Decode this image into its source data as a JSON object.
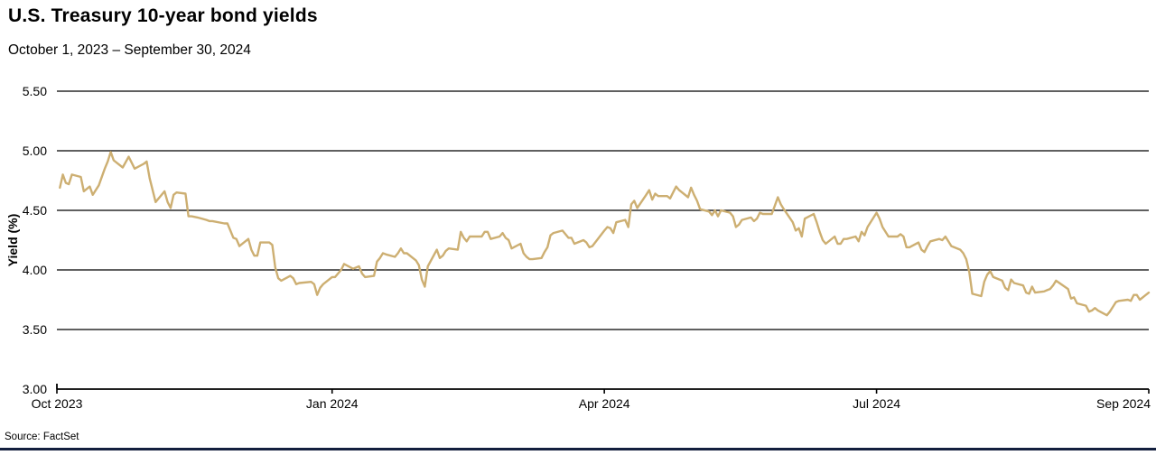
{
  "header": {
    "title": "U.S. Treasury 10-year bond yields",
    "subtitle": "October 1, 2023 – September 30, 2024"
  },
  "footer": {
    "source": "Source: FactSet"
  },
  "colors": {
    "line": "#CDAF72",
    "grid": "#000000",
    "text": "#000000",
    "accent_bar": "#131F3E"
  },
  "chart_data": {
    "type": "line",
    "title": "U.S. Treasury 10-year bond yields",
    "subtitle": "October 1, 2023 – September 30, 2024",
    "xlabel": "",
    "ylabel": "Yield (%)",
    "ylim": [
      3.0,
      5.5
    ],
    "y_ticks": [
      5.5,
      5.0,
      4.5,
      4.0,
      3.5,
      3.0
    ],
    "y_tick_labels": [
      "5.50",
      "5.00",
      "4.50",
      "4.00",
      "3.50",
      "3.00"
    ],
    "grid": "horizontal-only",
    "legend": "none",
    "x_unit": "days since Oct 1, 2023",
    "x_range_days": 365,
    "x_ticks": [
      {
        "label": "Oct 2023",
        "day": 0
      },
      {
        "label": "Jan 2024",
        "day": 92
      },
      {
        "label": "Apr 2024",
        "day": 183
      },
      {
        "label": "Jul 2024",
        "day": 274
      },
      {
        "label": "Sep 2024",
        "day": 365
      }
    ],
    "series": [
      {
        "name": "U.S. Treasury 10-year yield",
        "unit": "%",
        "points": [
          [
            1,
            4.69
          ],
          [
            2,
            4.8
          ],
          [
            3,
            4.73
          ],
          [
            4,
            4.72
          ],
          [
            5,
            4.8
          ],
          [
            8,
            4.78
          ],
          [
            9,
            4.66
          ],
          [
            11,
            4.7
          ],
          [
            12,
            4.63
          ],
          [
            14,
            4.71
          ],
          [
            16,
            4.85
          ],
          [
            17,
            4.91
          ],
          [
            18,
            4.99
          ],
          [
            19,
            4.92
          ],
          [
            22,
            4.86
          ],
          [
            24,
            4.95
          ],
          [
            25,
            4.9
          ],
          [
            26,
            4.85
          ],
          [
            29,
            4.89
          ],
          [
            30,
            4.91
          ],
          [
            31,
            4.77
          ],
          [
            32,
            4.67
          ],
          [
            33,
            4.57
          ],
          [
            36,
            4.66
          ],
          [
            37,
            4.57
          ],
          [
            38,
            4.52
          ],
          [
            39,
            4.63
          ],
          [
            40,
            4.65
          ],
          [
            43,
            4.64
          ],
          [
            44,
            4.45
          ],
          [
            45,
            4.45
          ],
          [
            47,
            4.44
          ],
          [
            50,
            4.42
          ],
          [
            51,
            4.41
          ],
          [
            52,
            4.41
          ],
          [
            56,
            4.39
          ],
          [
            57,
            4.39
          ],
          [
            58,
            4.33
          ],
          [
            59,
            4.27
          ],
          [
            60,
            4.26
          ],
          [
            61,
            4.2
          ],
          [
            64,
            4.26
          ],
          [
            65,
            4.17
          ],
          [
            66,
            4.12
          ],
          [
            67,
            4.12
          ],
          [
            68,
            4.23
          ],
          [
            71,
            4.23
          ],
          [
            72,
            4.21
          ],
          [
            73,
            4.02
          ],
          [
            74,
            3.93
          ],
          [
            75,
            3.91
          ],
          [
            78,
            3.95
          ],
          [
            79,
            3.93
          ],
          [
            80,
            3.88
          ],
          [
            81,
            3.89
          ],
          [
            85,
            3.9
          ],
          [
            86,
            3.88
          ],
          [
            87,
            3.79
          ],
          [
            88,
            3.85
          ],
          [
            89,
            3.88
          ],
          [
            92,
            3.94
          ],
          [
            93,
            3.94
          ],
          [
            95,
            4.0
          ],
          [
            96,
            4.05
          ],
          [
            99,
            4.01
          ],
          [
            100,
            4.02
          ],
          [
            101,
            4.03
          ],
          [
            102,
            3.97
          ],
          [
            103,
            3.94
          ],
          [
            106,
            3.95
          ],
          [
            107,
            4.07
          ],
          [
            108,
            4.1
          ],
          [
            109,
            4.14
          ],
          [
            110,
            4.13
          ],
          [
            113,
            4.11
          ],
          [
            114,
            4.14
          ],
          [
            115,
            4.18
          ],
          [
            116,
            4.14
          ],
          [
            117,
            4.14
          ],
          [
            120,
            4.08
          ],
          [
            121,
            4.04
          ],
          [
            122,
            3.92
          ],
          [
            123,
            3.86
          ],
          [
            124,
            4.03
          ],
          [
            127,
            4.17
          ],
          [
            128,
            4.1
          ],
          [
            129,
            4.12
          ],
          [
            130,
            4.16
          ],
          [
            131,
            4.18
          ],
          [
            134,
            4.17
          ],
          [
            135,
            4.32
          ],
          [
            136,
            4.27
          ],
          [
            137,
            4.24
          ],
          [
            138,
            4.28
          ],
          [
            141,
            4.28
          ],
          [
            142,
            4.28
          ],
          [
            143,
            4.32
          ],
          [
            144,
            4.32
          ],
          [
            145,
            4.26
          ],
          [
            148,
            4.28
          ],
          [
            149,
            4.31
          ],
          [
            150,
            4.27
          ],
          [
            151,
            4.25
          ],
          [
            152,
            4.18
          ],
          [
            155,
            4.22
          ],
          [
            156,
            4.14
          ],
          [
            157,
            4.11
          ],
          [
            158,
            4.09
          ],
          [
            159,
            4.09
          ],
          [
            162,
            4.1
          ],
          [
            163,
            4.15
          ],
          [
            164,
            4.19
          ],
          [
            165,
            4.29
          ],
          [
            166,
            4.31
          ],
          [
            169,
            4.33
          ],
          [
            170,
            4.3
          ],
          [
            171,
            4.27
          ],
          [
            172,
            4.27
          ],
          [
            173,
            4.22
          ],
          [
            176,
            4.25
          ],
          [
            177,
            4.23
          ],
          [
            178,
            4.19
          ],
          [
            179,
            4.2
          ],
          [
            183,
            4.33
          ],
          [
            184,
            4.36
          ],
          [
            185,
            4.35
          ],
          [
            186,
            4.31
          ],
          [
            187,
            4.4
          ],
          [
            190,
            4.42
          ],
          [
            191,
            4.36
          ],
          [
            192,
            4.55
          ],
          [
            193,
            4.58
          ],
          [
            194,
            4.52
          ],
          [
            197,
            4.63
          ],
          [
            198,
            4.67
          ],
          [
            199,
            4.59
          ],
          [
            200,
            4.64
          ],
          [
            201,
            4.62
          ],
          [
            204,
            4.62
          ],
          [
            205,
            4.6
          ],
          [
            206,
            4.65
          ],
          [
            207,
            4.7
          ],
          [
            208,
            4.67
          ],
          [
            211,
            4.61
          ],
          [
            212,
            4.69
          ],
          [
            213,
            4.63
          ],
          [
            214,
            4.58
          ],
          [
            215,
            4.51
          ],
          [
            218,
            4.49
          ],
          [
            219,
            4.46
          ],
          [
            220,
            4.5
          ],
          [
            221,
            4.45
          ],
          [
            222,
            4.5
          ],
          [
            225,
            4.48
          ],
          [
            226,
            4.45
          ],
          [
            227,
            4.36
          ],
          [
            228,
            4.38
          ],
          [
            229,
            4.42
          ],
          [
            232,
            4.44
          ],
          [
            233,
            4.41
          ],
          [
            234,
            4.43
          ],
          [
            235,
            4.48
          ],
          [
            236,
            4.47
          ],
          [
            239,
            4.47
          ],
          [
            240,
            4.54
          ],
          [
            241,
            4.61
          ],
          [
            242,
            4.55
          ],
          [
            243,
            4.51
          ],
          [
            246,
            4.4
          ],
          [
            247,
            4.33
          ],
          [
            248,
            4.35
          ],
          [
            249,
            4.28
          ],
          [
            250,
            4.43
          ],
          [
            253,
            4.47
          ],
          [
            254,
            4.4
          ],
          [
            255,
            4.32
          ],
          [
            256,
            4.25
          ],
          [
            257,
            4.22
          ],
          [
            260,
            4.28
          ],
          [
            261,
            4.22
          ],
          [
            262,
            4.22
          ],
          [
            263,
            4.26
          ],
          [
            264,
            4.26
          ],
          [
            267,
            4.28
          ],
          [
            268,
            4.24
          ],
          [
            269,
            4.32
          ],
          [
            270,
            4.29
          ],
          [
            271,
            4.36
          ],
          [
            274,
            4.48
          ],
          [
            275,
            4.43
          ],
          [
            276,
            4.36
          ],
          [
            278,
            4.28
          ],
          [
            281,
            4.28
          ],
          [
            282,
            4.3
          ],
          [
            283,
            4.28
          ],
          [
            284,
            4.19
          ],
          [
            285,
            4.19
          ],
          [
            288,
            4.23
          ],
          [
            289,
            4.17
          ],
          [
            290,
            4.15
          ],
          [
            291,
            4.2
          ],
          [
            292,
            4.24
          ],
          [
            295,
            4.26
          ],
          [
            296,
            4.25
          ],
          [
            297,
            4.28
          ],
          [
            298,
            4.24
          ],
          [
            299,
            4.2
          ],
          [
            302,
            4.17
          ],
          [
            303,
            4.14
          ],
          [
            304,
            4.09
          ],
          [
            305,
            3.98
          ],
          [
            306,
            3.8
          ],
          [
            309,
            3.78
          ],
          [
            310,
            3.9
          ],
          [
            311,
            3.96
          ],
          [
            312,
            3.99
          ],
          [
            313,
            3.94
          ],
          [
            316,
            3.91
          ],
          [
            317,
            3.85
          ],
          [
            318,
            3.83
          ],
          [
            319,
            3.92
          ],
          [
            320,
            3.89
          ],
          [
            323,
            3.87
          ],
          [
            324,
            3.81
          ],
          [
            325,
            3.8
          ],
          [
            326,
            3.86
          ],
          [
            327,
            3.81
          ],
          [
            330,
            3.82
          ],
          [
            331,
            3.83
          ],
          [
            332,
            3.84
          ],
          [
            333,
            3.87
          ],
          [
            334,
            3.91
          ],
          [
            338,
            3.84
          ],
          [
            339,
            3.76
          ],
          [
            340,
            3.77
          ],
          [
            341,
            3.72
          ],
          [
            344,
            3.7
          ],
          [
            345,
            3.65
          ],
          [
            346,
            3.66
          ],
          [
            347,
            3.68
          ],
          [
            348,
            3.66
          ],
          [
            351,
            3.62
          ],
          [
            352,
            3.65
          ],
          [
            353,
            3.69
          ],
          [
            354,
            3.73
          ],
          [
            355,
            3.74
          ],
          [
            358,
            3.75
          ],
          [
            359,
            3.74
          ],
          [
            360,
            3.79
          ],
          [
            361,
            3.79
          ],
          [
            362,
            3.75
          ],
          [
            365,
            3.81
          ]
        ]
      }
    ]
  }
}
